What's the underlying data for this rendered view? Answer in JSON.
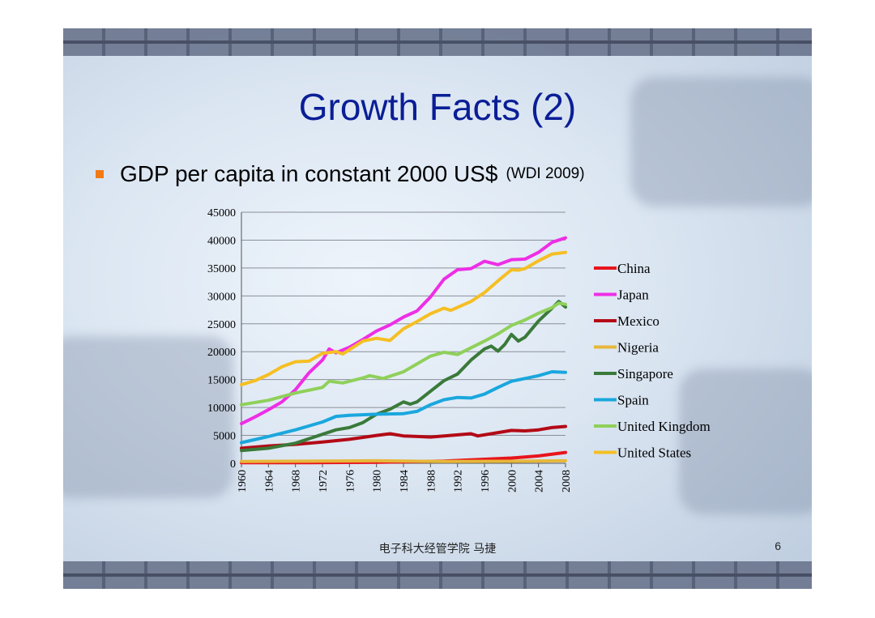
{
  "slide": {
    "title": "Growth Facts (2)",
    "subtitle": "GDP per capita in constant 2000 US$",
    "source": "(WDI 2009)",
    "footer": "电子科大经管学院 马捷",
    "page_number": "6",
    "bullet_color": "#f07b16",
    "title_color": "#0a1e96"
  },
  "chart_data": {
    "type": "line",
    "title": "",
    "xlabel": "",
    "ylabel": "",
    "ylim": [
      0,
      45000
    ],
    "yticks": [
      0,
      5000,
      10000,
      15000,
      20000,
      25000,
      30000,
      35000,
      40000,
      45000
    ],
    "xlim": [
      1960,
      2008
    ],
    "xticks": [
      1960,
      1964,
      1968,
      1972,
      1976,
      1980,
      1984,
      1988,
      1992,
      1996,
      2000,
      2004,
      2008
    ],
    "grid": "horizontal",
    "legend": "right",
    "series": [
      {
        "name": "China",
        "color": "#e8141c",
        "points": [
          [
            1960,
            100
          ],
          [
            1970,
            110
          ],
          [
            1980,
            190
          ],
          [
            1990,
            390
          ],
          [
            2000,
            950
          ],
          [
            2004,
            1320
          ],
          [
            2008,
            1950
          ]
        ]
      },
      {
        "name": "Japan",
        "color": "#ee2ee6",
        "points": [
          [
            1960,
            7100
          ],
          [
            1962,
            8300
          ],
          [
            1964,
            9600
          ],
          [
            1966,
            11000
          ],
          [
            1968,
            13200
          ],
          [
            1970,
            16200
          ],
          [
            1972,
            18500
          ],
          [
            1973,
            20500
          ],
          [
            1974,
            19800
          ],
          [
            1976,
            20800
          ],
          [
            1978,
            22200
          ],
          [
            1980,
            23700
          ],
          [
            1982,
            24800
          ],
          [
            1984,
            26200
          ],
          [
            1986,
            27300
          ],
          [
            1988,
            29800
          ],
          [
            1990,
            33000
          ],
          [
            1992,
            34700
          ],
          [
            1994,
            34900
          ],
          [
            1996,
            36200
          ],
          [
            1998,
            35600
          ],
          [
            2000,
            36500
          ],
          [
            2002,
            36600
          ],
          [
            2004,
            37800
          ],
          [
            2006,
            39600
          ],
          [
            2008,
            40400
          ]
        ]
      },
      {
        "name": "Mexico",
        "color": "#b30a16",
        "points": [
          [
            1960,
            2700
          ],
          [
            1964,
            3100
          ],
          [
            1968,
            3400
          ],
          [
            1972,
            3800
          ],
          [
            1976,
            4300
          ],
          [
            1980,
            5000
          ],
          [
            1982,
            5300
          ],
          [
            1984,
            4900
          ],
          [
            1986,
            4800
          ],
          [
            1988,
            4700
          ],
          [
            1992,
            5100
          ],
          [
            1994,
            5300
          ],
          [
            1995,
            4900
          ],
          [
            1998,
            5500
          ],
          [
            2000,
            5900
          ],
          [
            2002,
            5800
          ],
          [
            2004,
            6000
          ],
          [
            2006,
            6400
          ],
          [
            2008,
            6600
          ]
        ]
      },
      {
        "name": "Nigeria",
        "color": "#e7b73b",
        "points": [
          [
            1960,
            330
          ],
          [
            1970,
            380
          ],
          [
            1980,
            450
          ],
          [
            1990,
            330
          ],
          [
            2000,
            360
          ],
          [
            2008,
            450
          ]
        ]
      },
      {
        "name": "Singapore",
        "color": "#3a7a3a",
        "points": [
          [
            1960,
            2300
          ],
          [
            1964,
            2700
          ],
          [
            1968,
            3600
          ],
          [
            1972,
            5200
          ],
          [
            1974,
            6000
          ],
          [
            1976,
            6400
          ],
          [
            1978,
            7300
          ],
          [
            1980,
            8800
          ],
          [
            1982,
            9700
          ],
          [
            1984,
            11000
          ],
          [
            1985,
            10600
          ],
          [
            1986,
            11000
          ],
          [
            1988,
            12900
          ],
          [
            1990,
            14800
          ],
          [
            1992,
            16000
          ],
          [
            1994,
            18500
          ],
          [
            1996,
            20500
          ],
          [
            1997,
            21000
          ],
          [
            1998,
            20100
          ],
          [
            1999,
            21300
          ],
          [
            2000,
            23100
          ],
          [
            2001,
            21900
          ],
          [
            2002,
            22600
          ],
          [
            2004,
            25500
          ],
          [
            2006,
            27800
          ],
          [
            2007,
            29000
          ],
          [
            2008,
            28000
          ]
        ]
      },
      {
        "name": "Spain",
        "color": "#1aa7dd",
        "points": [
          [
            1960,
            3700
          ],
          [
            1964,
            4800
          ],
          [
            1968,
            6000
          ],
          [
            1972,
            7400
          ],
          [
            1974,
            8400
          ],
          [
            1976,
            8600
          ],
          [
            1980,
            8800
          ],
          [
            1984,
            8900
          ],
          [
            1986,
            9300
          ],
          [
            1988,
            10500
          ],
          [
            1990,
            11400
          ],
          [
            1992,
            11800
          ],
          [
            1994,
            11700
          ],
          [
            1996,
            12400
          ],
          [
            1998,
            13600
          ],
          [
            2000,
            14700
          ],
          [
            2002,
            15200
          ],
          [
            2004,
            15700
          ],
          [
            2006,
            16400
          ],
          [
            2008,
            16300
          ]
        ]
      },
      {
        "name": "United Kingdom",
        "color": "#8fd05a",
        "points": [
          [
            1960,
            10500
          ],
          [
            1964,
            11300
          ],
          [
            1968,
            12600
          ],
          [
            1972,
            13600
          ],
          [
            1973,
            14700
          ],
          [
            1975,
            14400
          ],
          [
            1978,
            15300
          ],
          [
            1979,
            15700
          ],
          [
            1981,
            15200
          ],
          [
            1984,
            16400
          ],
          [
            1988,
            19200
          ],
          [
            1990,
            19900
          ],
          [
            1992,
            19500
          ],
          [
            1994,
            20700
          ],
          [
            1996,
            21900
          ],
          [
            1998,
            23200
          ],
          [
            2000,
            24700
          ],
          [
            2002,
            25700
          ],
          [
            2004,
            26900
          ],
          [
            2006,
            27900
          ],
          [
            2007,
            28700
          ],
          [
            2008,
            28500
          ]
        ]
      },
      {
        "name": "United States",
        "color": "#f5bf24",
        "points": [
          [
            1960,
            14100
          ],
          [
            1962,
            14800
          ],
          [
            1964,
            15900
          ],
          [
            1966,
            17300
          ],
          [
            1968,
            18200
          ],
          [
            1970,
            18300
          ],
          [
            1972,
            19700
          ],
          [
            1974,
            20000
          ],
          [
            1975,
            19600
          ],
          [
            1978,
            21900
          ],
          [
            1980,
            22400
          ],
          [
            1982,
            22000
          ],
          [
            1984,
            24100
          ],
          [
            1986,
            25400
          ],
          [
            1988,
            26800
          ],
          [
            1990,
            27800
          ],
          [
            1991,
            27400
          ],
          [
            1994,
            29000
          ],
          [
            1996,
            30600
          ],
          [
            1998,
            32700
          ],
          [
            2000,
            34700
          ],
          [
            2001,
            34600
          ],
          [
            2002,
            34900
          ],
          [
            2004,
            36300
          ],
          [
            2006,
            37500
          ],
          [
            2008,
            37800
          ]
        ]
      }
    ]
  }
}
